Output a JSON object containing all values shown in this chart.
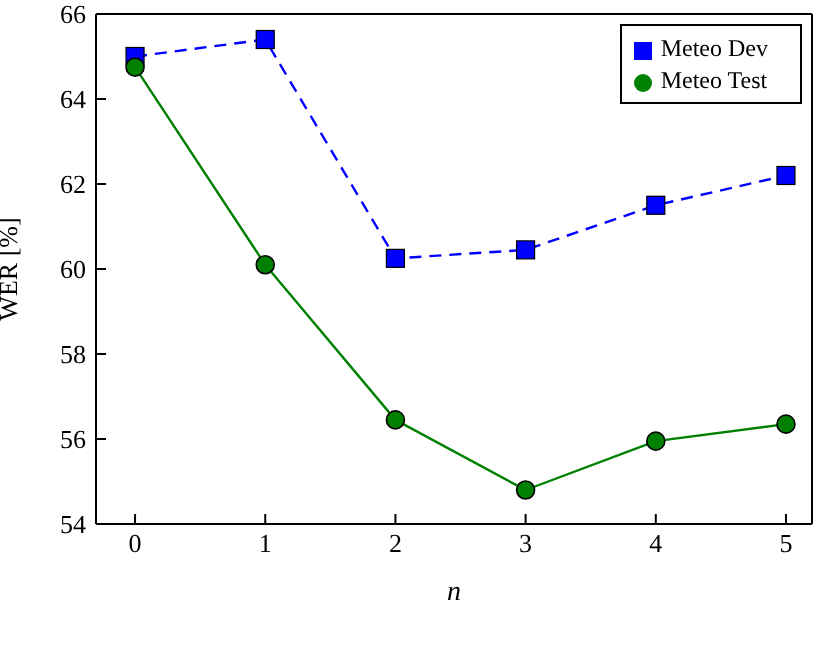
{
  "chart_data": {
    "type": "line",
    "xlabel": "n",
    "ylabel": "WER [%]",
    "x": [
      0,
      1,
      2,
      3,
      4,
      5
    ],
    "series": [
      {
        "name": "Meteo Dev",
        "color": "#0000ff",
        "values": [
          65.0,
          65.4,
          60.25,
          60.45,
          61.5,
          62.2
        ],
        "marker": "square",
        "line_style": "dashed"
      },
      {
        "name": "Meteo Test",
        "color": "#008000",
        "values": [
          64.75,
          60.1,
          56.45,
          54.8,
          55.95,
          56.35
        ],
        "marker": "circle",
        "line_style": "solid"
      }
    ],
    "xlim": [
      -0.3,
      5.2
    ],
    "xticks": [
      0,
      1,
      2,
      3,
      4,
      5
    ],
    "ylim": [
      54,
      66
    ],
    "yticks": [
      54,
      56,
      58,
      60,
      62,
      64,
      66
    ],
    "grid": false,
    "legend": "top right"
  }
}
